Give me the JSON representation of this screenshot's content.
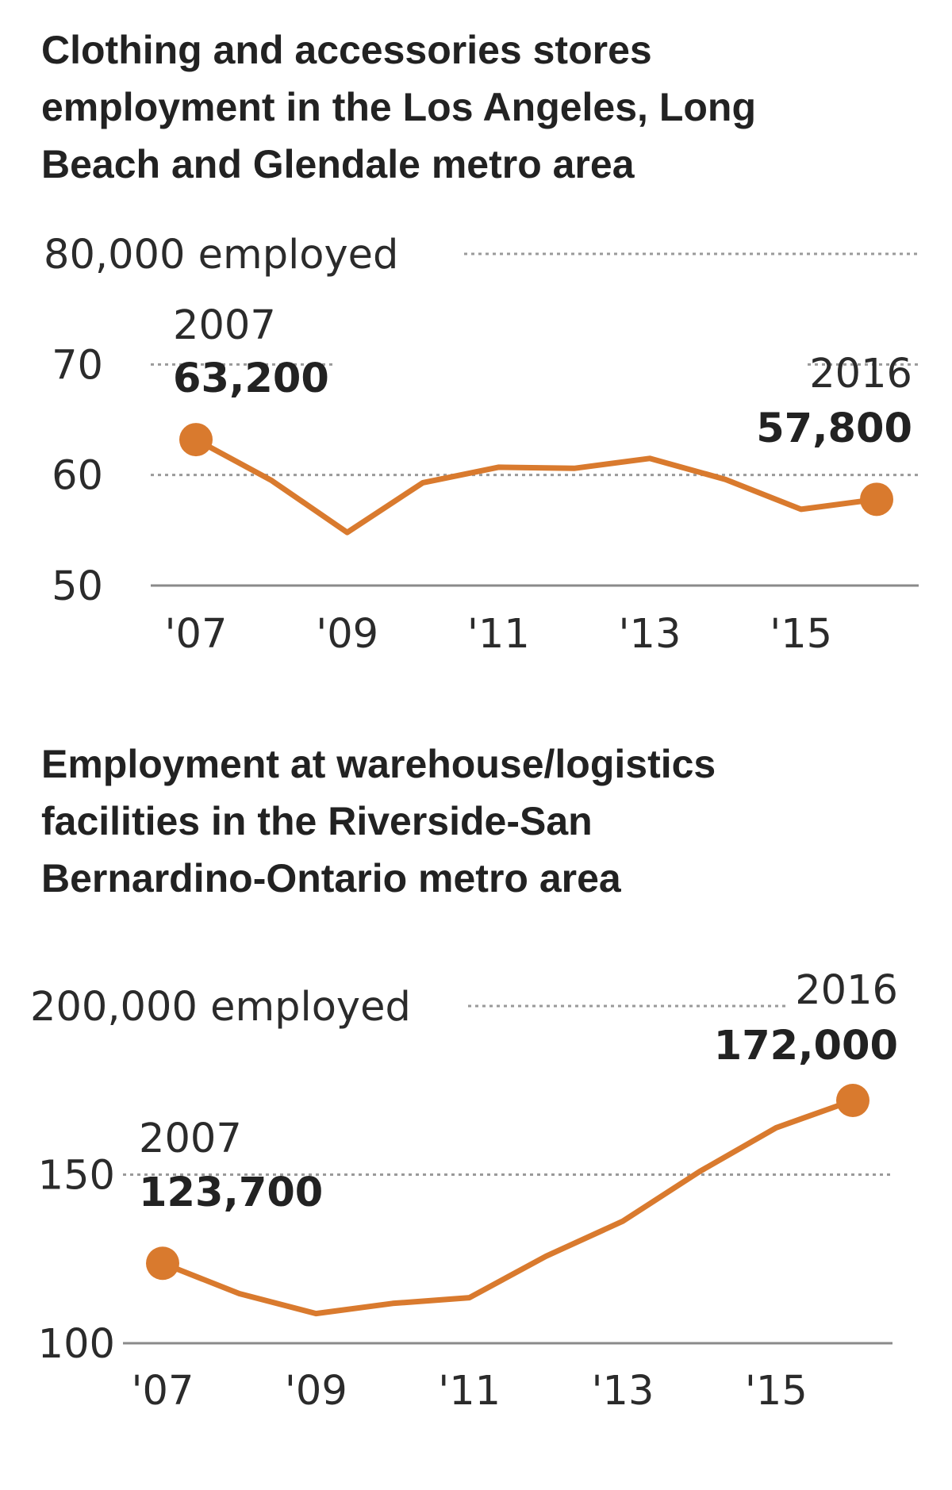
{
  "chart_data": [
    {
      "type": "line",
      "title_lines": [
        "Clothing and accessories stores",
        "employment in the Los Angeles, Long",
        "Beach and Glendale metro area"
      ],
      "y_top_label": "80,000 employed",
      "y_ticks": [
        {
          "value": 80,
          "label": "80,000 employed"
        },
        {
          "value": 70,
          "label": "70"
        },
        {
          "value": 60,
          "label": "60"
        },
        {
          "value": 50,
          "label": "50"
        }
      ],
      "x_ticks": [
        {
          "value": 2007,
          "label": "'07"
        },
        {
          "value": 2009,
          "label": "'09"
        },
        {
          "value": 2011,
          "label": "'11"
        },
        {
          "value": 2013,
          "label": "'13"
        },
        {
          "value": 2015,
          "label": "'15"
        }
      ],
      "ylim": [
        50,
        80
      ],
      "xlim": [
        2007,
        2016
      ],
      "grid": true,
      "color": "#d97a2e",
      "x": [
        2007,
        2008,
        2009,
        2010,
        2011,
        2012,
        2013,
        2014,
        2015,
        2016
      ],
      "values": [
        63.2,
        59.5,
        54.8,
        59.3,
        60.7,
        60.6,
        61.5,
        59.6,
        56.9,
        57.8
      ],
      "annotations": [
        {
          "year": "2007",
          "value": "63,200"
        },
        {
          "year": "2016",
          "value": "57,800"
        }
      ]
    },
    {
      "type": "line",
      "title_lines": [
        "Employment at warehouse/logistics",
        "facilities in the Riverside-San",
        "Bernardino-Ontario metro area"
      ],
      "y_ticks": [
        {
          "value": 200,
          "label": "200,000 employed"
        },
        {
          "value": 150,
          "label": "150"
        },
        {
          "value": 100,
          "label": "100"
        }
      ],
      "x_ticks": [
        {
          "value": 2007,
          "label": "'07"
        },
        {
          "value": 2009,
          "label": "'09"
        },
        {
          "value": 2011,
          "label": "'11"
        },
        {
          "value": 2013,
          "label": "'13"
        },
        {
          "value": 2015,
          "label": "'15"
        }
      ],
      "ylim": [
        100,
        200
      ],
      "xlim": [
        2007,
        2016
      ],
      "grid": true,
      "color": "#d97a2e",
      "x": [
        2007,
        2008,
        2009,
        2010,
        2011,
        2012,
        2013,
        2014,
        2015,
        2016
      ],
      "values": [
        123.7,
        114.7,
        108.8,
        111.8,
        113.5,
        125.8,
        136.2,
        150.9,
        163.9,
        172.0
      ],
      "annotations": [
        {
          "year": "2007",
          "value": "123,700"
        },
        {
          "year": "2016",
          "value": "172,000"
        }
      ]
    }
  ]
}
